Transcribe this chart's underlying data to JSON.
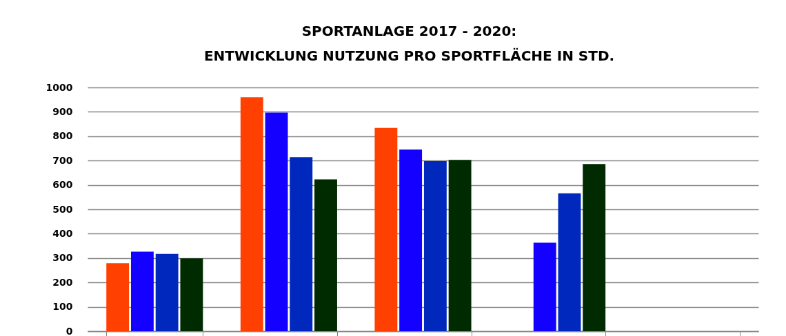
{
  "chart_data": {
    "type": "bar",
    "title": "SPORTANLAGE 2017 - 2020:\nENTWICKLUNG NUTZUNG PRO SPORTFLÄCHE IN STD.",
    "categories": [
      null,
      null,
      null,
      null,
      null
    ],
    "series": [
      {
        "color": "#ff4000",
        "values": [
          279,
          960,
          834,
          null,
          null
        ]
      },
      {
        "color": "#1400ff",
        "values": [
          326,
          897,
          745,
          363,
          null
        ]
      },
      {
        "color": "#0028bc",
        "values": [
          317,
          714,
          698,
          566,
          null
        ]
      },
      {
        "color": "#002a00",
        "values": [
          299,
          623,
          703,
          686,
          null
        ]
      }
    ],
    "ylim": [
      0,
      1000
    ],
    "yticks": [
      0,
      100,
      200,
      300,
      400,
      500,
      600,
      700,
      800,
      900,
      1000
    ],
    "grid": "y",
    "legend": false
  }
}
